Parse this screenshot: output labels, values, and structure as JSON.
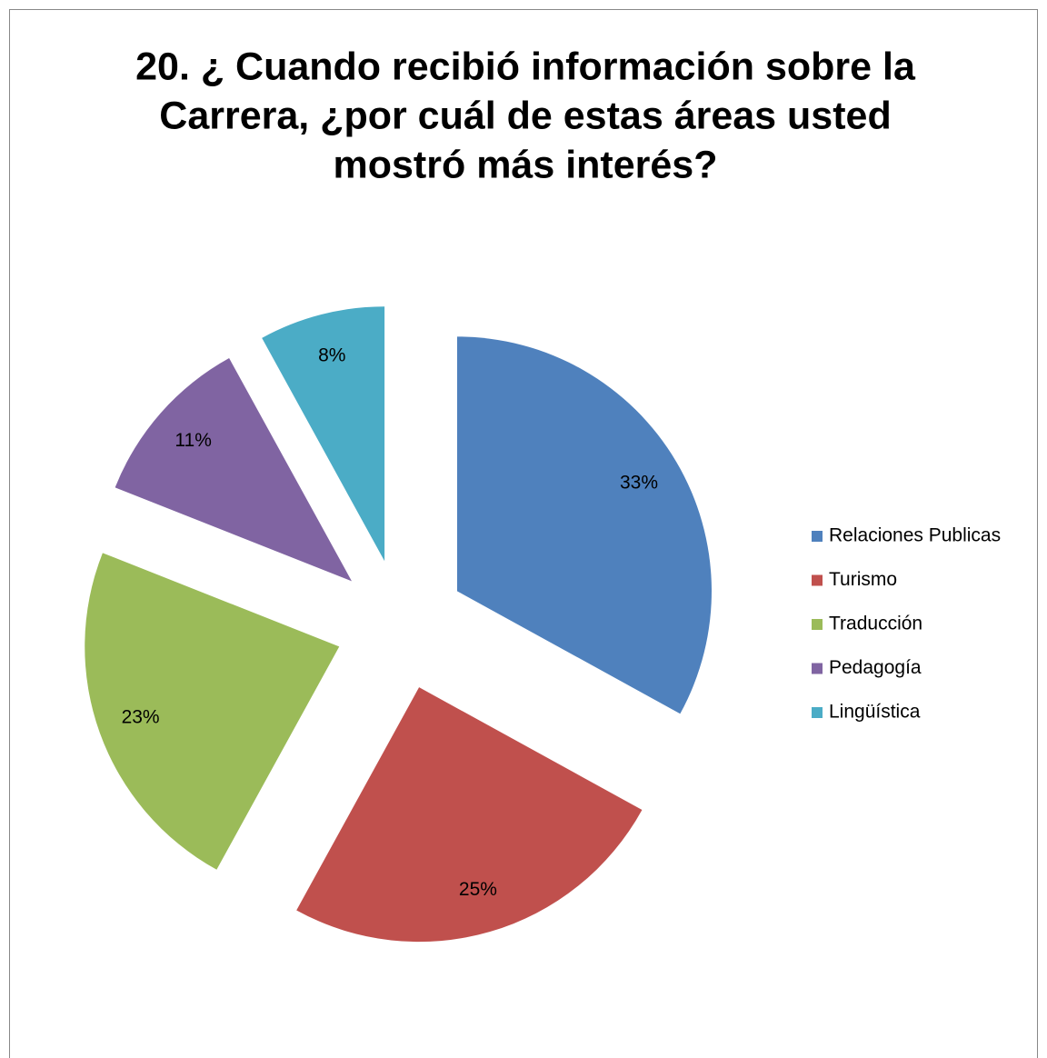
{
  "chart_data": {
    "type": "pie",
    "title": [
      "20. ¿ Cuando recibió información sobre la",
      "Carrera, ¿por cuál de estas áreas usted",
      "mostró más interés?"
    ],
    "categories": [
      "Relaciones Publicas",
      "Turismo",
      "Traducción",
      "Pedagogía",
      "Lingüística"
    ],
    "values": [
      33,
      25,
      23,
      11,
      8
    ],
    "value_labels": [
      "33%",
      "25%",
      "23%",
      "11%",
      "8%"
    ],
    "colors": [
      "#4f81bd",
      "#c0504d",
      "#9bbb59",
      "#8064a2",
      "#4bacc6"
    ],
    "exploded": true,
    "legend": "right"
  }
}
